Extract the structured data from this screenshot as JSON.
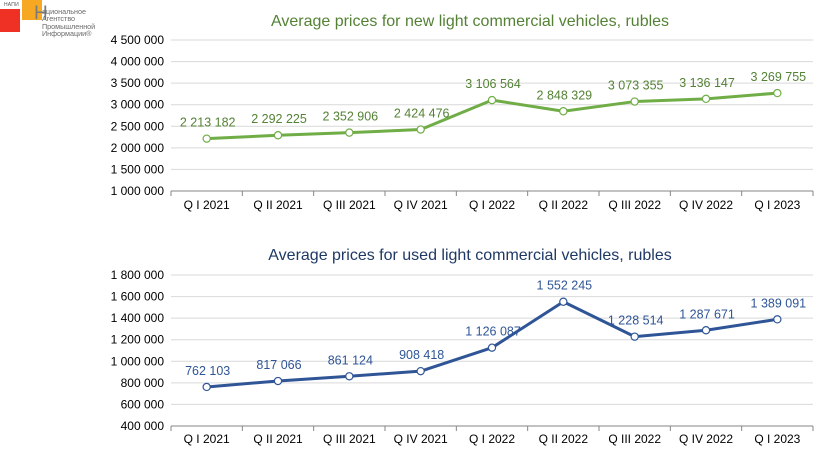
{
  "logo": {
    "abbr": "НАПИ",
    "initial": "Н",
    "name_lines": [
      "ациональное",
      "Агентство",
      "Промышленной",
      "Информации®"
    ],
    "colors": {
      "red": "#ee3124",
      "orange": "#f7a823"
    }
  },
  "chart_data": [
    {
      "type": "line",
      "title": "Average prices for new light commercial vehicles, rubles",
      "xlabel": "",
      "ylabel": "",
      "categories": [
        "Q I 2021",
        "Q II 2021",
        "Q III 2021",
        "Q IV 2021",
        "Q I 2022",
        "Q II 2022",
        "Q III 2022",
        "Q IV 2022",
        "Q I 2023"
      ],
      "series": [
        {
          "name": "New light commercial vehicles",
          "color": "#70ad47",
          "values": [
            2213182,
            2292225,
            2352906,
            2424476,
            3106564,
            2848329,
            3073355,
            3136147,
            3269755
          ],
          "labels": [
            "2 213 182",
            "2 292 225",
            "2 352 906",
            "2 424 476",
            "3 106 564",
            "2 848 329",
            "3 073 355",
            "3 136 147",
            "3 269 755"
          ]
        }
      ],
      "ylim": [
        1000000,
        4500000
      ],
      "yticks": [
        1000000,
        1500000,
        2000000,
        2500000,
        3000000,
        3500000,
        4000000,
        4500000
      ],
      "ytick_labels": [
        "1 000 000",
        "1 500 000",
        "2 000 000",
        "2 500 000",
        "3 000 000",
        "3 500 000",
        "4 000 000",
        "4 500 000"
      ],
      "grid": true,
      "legend": "none",
      "title_color": "#548235",
      "label_color": "#548235"
    },
    {
      "type": "line",
      "title": "Average prices for used light commercial vehicles, rubles",
      "xlabel": "",
      "ylabel": "",
      "categories": [
        "Q I 2021",
        "Q II 2021",
        "Q III 2021",
        "Q IV 2021",
        "Q I 2022",
        "Q II 2022",
        "Q III 2022",
        "Q IV 2022",
        "Q I 2023"
      ],
      "series": [
        {
          "name": "Used light commercial vehicles",
          "color": "#2f5597",
          "values": [
            762103,
            817066,
            861124,
            908418,
            1126087,
            1552245,
            1228514,
            1287671,
            1389091
          ],
          "labels": [
            "762 103",
            "817 066",
            "861 124",
            "908 418",
            "1 126 087",
            "1 552 245",
            "1 228 514",
            "1 287 671",
            "1 389 091"
          ]
        }
      ],
      "ylim": [
        400000,
        1800000
      ],
      "yticks": [
        400000,
        600000,
        800000,
        1000000,
        1200000,
        1400000,
        1600000,
        1800000
      ],
      "ytick_labels": [
        "400 000",
        "600 000",
        "800 000",
        "1 000 000",
        "1 200 000",
        "1 400 000",
        "1 600 000",
        "1 800 000"
      ],
      "grid": true,
      "legend": "none",
      "title_color": "#1f3864",
      "label_color": "#2f5597"
    }
  ]
}
